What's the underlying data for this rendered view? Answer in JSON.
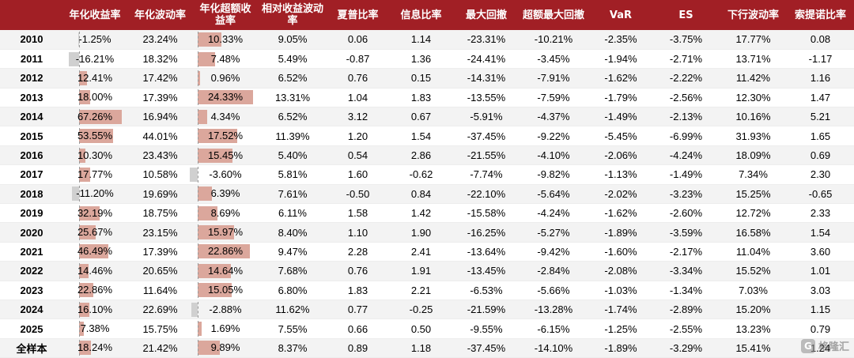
{
  "headers": [
    "",
    "年化收益率",
    "年化波动率",
    "年化超额收益率",
    "相对收益波动率",
    "夏普比率",
    "信息比率",
    "最大回撤",
    "超额最大回撤",
    "VaR",
    "ES",
    "下行波动率",
    "索提诺比率"
  ],
  "rows": [
    {
      "year": "2010",
      "ret": "-1.25%",
      "vol": "23.24%",
      "excess": "10.33%",
      "rel_vol": "9.05%",
      "sharpe": "0.06",
      "info": "1.14",
      "mdd": "-23.31%",
      "ex_mdd": "-10.21%",
      "var": "-2.35%",
      "es": "-3.75%",
      "down_vol": "17.77%",
      "sortino": "0.08",
      "ret_num": -1.25,
      "excess_num": 10.33
    },
    {
      "year": "2011",
      "ret": "-16.21%",
      "vol": "18.32%",
      "excess": "7.48%",
      "rel_vol": "5.49%",
      "sharpe": "-0.87",
      "info": "1.36",
      "mdd": "-24.41%",
      "ex_mdd": "-3.45%",
      "var": "-1.94%",
      "es": "-2.71%",
      "down_vol": "13.71%",
      "sortino": "-1.17",
      "ret_num": -16.21,
      "excess_num": 7.48
    },
    {
      "year": "2012",
      "ret": "12.41%",
      "vol": "17.42%",
      "excess": "0.96%",
      "rel_vol": "6.52%",
      "sharpe": "0.76",
      "info": "0.15",
      "mdd": "-14.31%",
      "ex_mdd": "-7.91%",
      "var": "-1.62%",
      "es": "-2.22%",
      "down_vol": "11.42%",
      "sortino": "1.16",
      "ret_num": 12.41,
      "excess_num": 0.96
    },
    {
      "year": "2013",
      "ret": "18.00%",
      "vol": "17.39%",
      "excess": "24.33%",
      "rel_vol": "13.31%",
      "sharpe": "1.04",
      "info": "1.83",
      "mdd": "-13.55%",
      "ex_mdd": "-7.59%",
      "var": "-1.79%",
      "es": "-2.56%",
      "down_vol": "12.30%",
      "sortino": "1.47",
      "ret_num": 18.0,
      "excess_num": 24.33
    },
    {
      "year": "2014",
      "ret": "67.26%",
      "vol": "16.94%",
      "excess": "4.34%",
      "rel_vol": "6.52%",
      "sharpe": "3.12",
      "info": "0.67",
      "mdd": "-5.91%",
      "ex_mdd": "-4.37%",
      "var": "-1.49%",
      "es": "-2.13%",
      "down_vol": "10.16%",
      "sortino": "5.21",
      "ret_num": 67.26,
      "excess_num": 4.34
    },
    {
      "year": "2015",
      "ret": "53.55%",
      "vol": "44.01%",
      "excess": "17.52%",
      "rel_vol": "11.39%",
      "sharpe": "1.20",
      "info": "1.54",
      "mdd": "-37.45%",
      "ex_mdd": "-9.22%",
      "var": "-5.45%",
      "es": "-6.99%",
      "down_vol": "31.93%",
      "sortino": "1.65",
      "ret_num": 53.55,
      "excess_num": 17.52
    },
    {
      "year": "2016",
      "ret": "10.30%",
      "vol": "23.43%",
      "excess": "15.45%",
      "rel_vol": "5.40%",
      "sharpe": "0.54",
      "info": "2.86",
      "mdd": "-21.55%",
      "ex_mdd": "-4.10%",
      "var": "-2.06%",
      "es": "-4.24%",
      "down_vol": "18.09%",
      "sortino": "0.69",
      "ret_num": 10.3,
      "excess_num": 15.45
    },
    {
      "year": "2017",
      "ret": "17.77%",
      "vol": "10.58%",
      "excess": "-3.60%",
      "rel_vol": "5.81%",
      "sharpe": "1.60",
      "info": "-0.62",
      "mdd": "-7.74%",
      "ex_mdd": "-9.82%",
      "var": "-1.13%",
      "es": "-1.49%",
      "down_vol": "7.34%",
      "sortino": "2.30",
      "ret_num": 17.77,
      "excess_num": -3.6
    },
    {
      "year": "2018",
      "ret": "-11.20%",
      "vol": "19.69%",
      "excess": "6.39%",
      "rel_vol": "7.61%",
      "sharpe": "-0.50",
      "info": "0.84",
      "mdd": "-22.10%",
      "ex_mdd": "-5.64%",
      "var": "-2.02%",
      "es": "-3.23%",
      "down_vol": "15.25%",
      "sortino": "-0.65",
      "ret_num": -11.2,
      "excess_num": 6.39
    },
    {
      "year": "2019",
      "ret": "32.19%",
      "vol": "18.75%",
      "excess": "8.69%",
      "rel_vol": "6.11%",
      "sharpe": "1.58",
      "info": "1.42",
      "mdd": "-15.58%",
      "ex_mdd": "-4.24%",
      "var": "-1.62%",
      "es": "-2.60%",
      "down_vol": "12.72%",
      "sortino": "2.33",
      "ret_num": 32.19,
      "excess_num": 8.69
    },
    {
      "year": "2020",
      "ret": "25.67%",
      "vol": "23.15%",
      "excess": "15.97%",
      "rel_vol": "8.40%",
      "sharpe": "1.10",
      "info": "1.90",
      "mdd": "-16.25%",
      "ex_mdd": "-5.27%",
      "var": "-1.89%",
      "es": "-3.59%",
      "down_vol": "16.58%",
      "sortino": "1.54",
      "ret_num": 25.67,
      "excess_num": 15.97
    },
    {
      "year": "2021",
      "ret": "46.49%",
      "vol": "17.39%",
      "excess": "22.86%",
      "rel_vol": "9.47%",
      "sharpe": "2.28",
      "info": "2.41",
      "mdd": "-13.64%",
      "ex_mdd": "-9.42%",
      "var": "-1.60%",
      "es": "-2.17%",
      "down_vol": "11.04%",
      "sortino": "3.60",
      "ret_num": 46.49,
      "excess_num": 22.86
    },
    {
      "year": "2022",
      "ret": "14.46%",
      "vol": "20.65%",
      "excess": "14.64%",
      "rel_vol": "7.68%",
      "sharpe": "0.76",
      "info": "1.91",
      "mdd": "-13.45%",
      "ex_mdd": "-2.84%",
      "var": "-2.08%",
      "es": "-3.34%",
      "down_vol": "15.52%",
      "sortino": "1.01",
      "ret_num": 14.46,
      "excess_num": 14.64
    },
    {
      "year": "2023",
      "ret": "22.86%",
      "vol": "11.64%",
      "excess": "15.05%",
      "rel_vol": "6.80%",
      "sharpe": "1.83",
      "info": "2.21",
      "mdd": "-6.53%",
      "ex_mdd": "-5.66%",
      "var": "-1.03%",
      "es": "-1.34%",
      "down_vol": "7.03%",
      "sortino": "3.03",
      "ret_num": 22.86,
      "excess_num": 15.05
    },
    {
      "year": "2024",
      "ret": "16.10%",
      "vol": "22.69%",
      "excess": "-2.88%",
      "rel_vol": "11.62%",
      "sharpe": "0.77",
      "info": "-0.25",
      "mdd": "-21.59%",
      "ex_mdd": "-13.28%",
      "var": "-1.74%",
      "es": "-2.89%",
      "down_vol": "15.20%",
      "sortino": "1.15",
      "ret_num": 16.1,
      "excess_num": -2.88
    },
    {
      "year": "2025",
      "ret": "7.38%",
      "vol": "15.75%",
      "excess": "1.69%",
      "rel_vol": "7.55%",
      "sharpe": "0.66",
      "info": "0.50",
      "mdd": "-9.55%",
      "ex_mdd": "-6.15%",
      "var": "-1.25%",
      "es": "-2.55%",
      "down_vol": "13.23%",
      "sortino": "0.79",
      "ret_num": 7.38,
      "excess_num": 1.69
    },
    {
      "year": "全样本",
      "ret": "18.24%",
      "vol": "21.42%",
      "excess": "9.89%",
      "rel_vol": "8.37%",
      "sharpe": "0.89",
      "info": "1.18",
      "mdd": "-37.45%",
      "ex_mdd": "-14.10%",
      "var": "-1.89%",
      "es": "-3.29%",
      "down_vol": "15.41%",
      "sortino": "1.24",
      "ret_num": 18.24,
      "excess_num": 9.89
    }
  ],
  "colors": {
    "header_bg": "#a11f25",
    "positive_bar": "#dba79c",
    "negative_bar": "#d0d0d0"
  },
  "watermark": {
    "text": "格隆汇",
    "icon": "gelonghui-logo-icon"
  }
}
